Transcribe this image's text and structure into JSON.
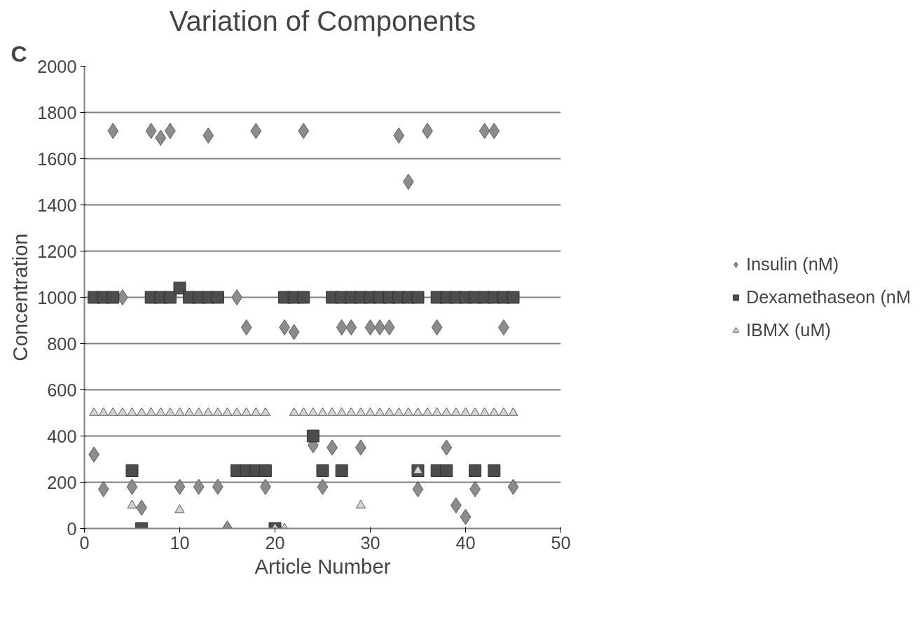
{
  "chart_data": {
    "type": "scatter",
    "title": "Variation of Components",
    "xlabel": "Article Number",
    "ylabel": "Concentration",
    "annotations": [
      "C"
    ],
    "xlim": [
      0,
      50
    ],
    "xticks": [
      0,
      10,
      20,
      30,
      40,
      50
    ],
    "ylim": [
      0,
      2000
    ],
    "yticks": [
      0,
      200,
      400,
      600,
      800,
      1000,
      1200,
      1400,
      1600,
      1800,
      2000
    ],
    "grid": "y",
    "legend": "right",
    "series": [
      {
        "name": "Insulin (nM)",
        "color": "#8c8c8c",
        "marker": "diamond",
        "x": [
          1,
          2,
          3,
          4,
          5,
          6,
          7,
          8,
          9,
          10,
          12,
          13,
          14,
          15,
          16,
          17,
          18,
          19,
          21,
          22,
          23,
          24,
          25,
          26,
          27,
          28,
          29,
          30,
          31,
          32,
          33,
          34,
          35,
          36,
          37,
          38,
          39,
          40,
          41,
          42,
          43,
          44,
          45
        ],
        "values": [
          320,
          170,
          1720,
          1000,
          180,
          90,
          1720,
          1690,
          1720,
          180,
          180,
          1700,
          180,
          0,
          1000,
          870,
          1720,
          180,
          870,
          850,
          1720,
          360,
          180,
          350,
          870,
          870,
          350,
          870,
          870,
          870,
          1700,
          1500,
          170,
          1720,
          870,
          350,
          100,
          50,
          170,
          1720,
          1720,
          870,
          180
        ]
      },
      {
        "name": "Dexamethaseon (nM",
        "color": "#4d4d4d",
        "marker": "square",
        "x": [
          1,
          2,
          3,
          7,
          8,
          9,
          10,
          11,
          12,
          13,
          14,
          21,
          22,
          23,
          26,
          27,
          28,
          29,
          30,
          31,
          32,
          33,
          34,
          35,
          37,
          38,
          39,
          40,
          41,
          42,
          43,
          44,
          45,
          24,
          5,
          16,
          17,
          18,
          19,
          25,
          27,
          35,
          37,
          38,
          41,
          43,
          6,
          20
        ],
        "values": [
          1000,
          1000,
          1000,
          1000,
          1000,
          1000,
          1040,
          1000,
          1000,
          1000,
          1000,
          1000,
          1000,
          1000,
          1000,
          1000,
          1000,
          1000,
          1000,
          1000,
          1000,
          1000,
          1000,
          1000,
          1000,
          1000,
          1000,
          1000,
          1000,
          1000,
          1000,
          1000,
          1000,
          400,
          250,
          250,
          250,
          250,
          250,
          250,
          250,
          250,
          250,
          250,
          250,
          250,
          0,
          0
        ]
      },
      {
        "name": "IBMX (uM)",
        "color": "#d4d4d4",
        "marker": "triangle",
        "x": [
          1,
          2,
          3,
          4,
          5,
          6,
          7,
          8,
          9,
          10,
          11,
          12,
          13,
          14,
          15,
          16,
          17,
          18,
          19,
          22,
          23,
          24,
          25,
          26,
          27,
          28,
          29,
          30,
          31,
          32,
          33,
          34,
          35,
          36,
          37,
          38,
          39,
          40,
          41,
          42,
          43,
          44,
          45,
          5,
          10,
          20,
          21,
          29,
          35
        ],
        "values": [
          500,
          500,
          500,
          500,
          500,
          500,
          500,
          500,
          500,
          500,
          500,
          500,
          500,
          500,
          500,
          500,
          500,
          500,
          500,
          500,
          500,
          500,
          500,
          500,
          500,
          500,
          500,
          500,
          500,
          500,
          500,
          500,
          500,
          500,
          500,
          500,
          500,
          500,
          500,
          500,
          500,
          500,
          500,
          100,
          80,
          0,
          0,
          100,
          250
        ]
      }
    ]
  }
}
